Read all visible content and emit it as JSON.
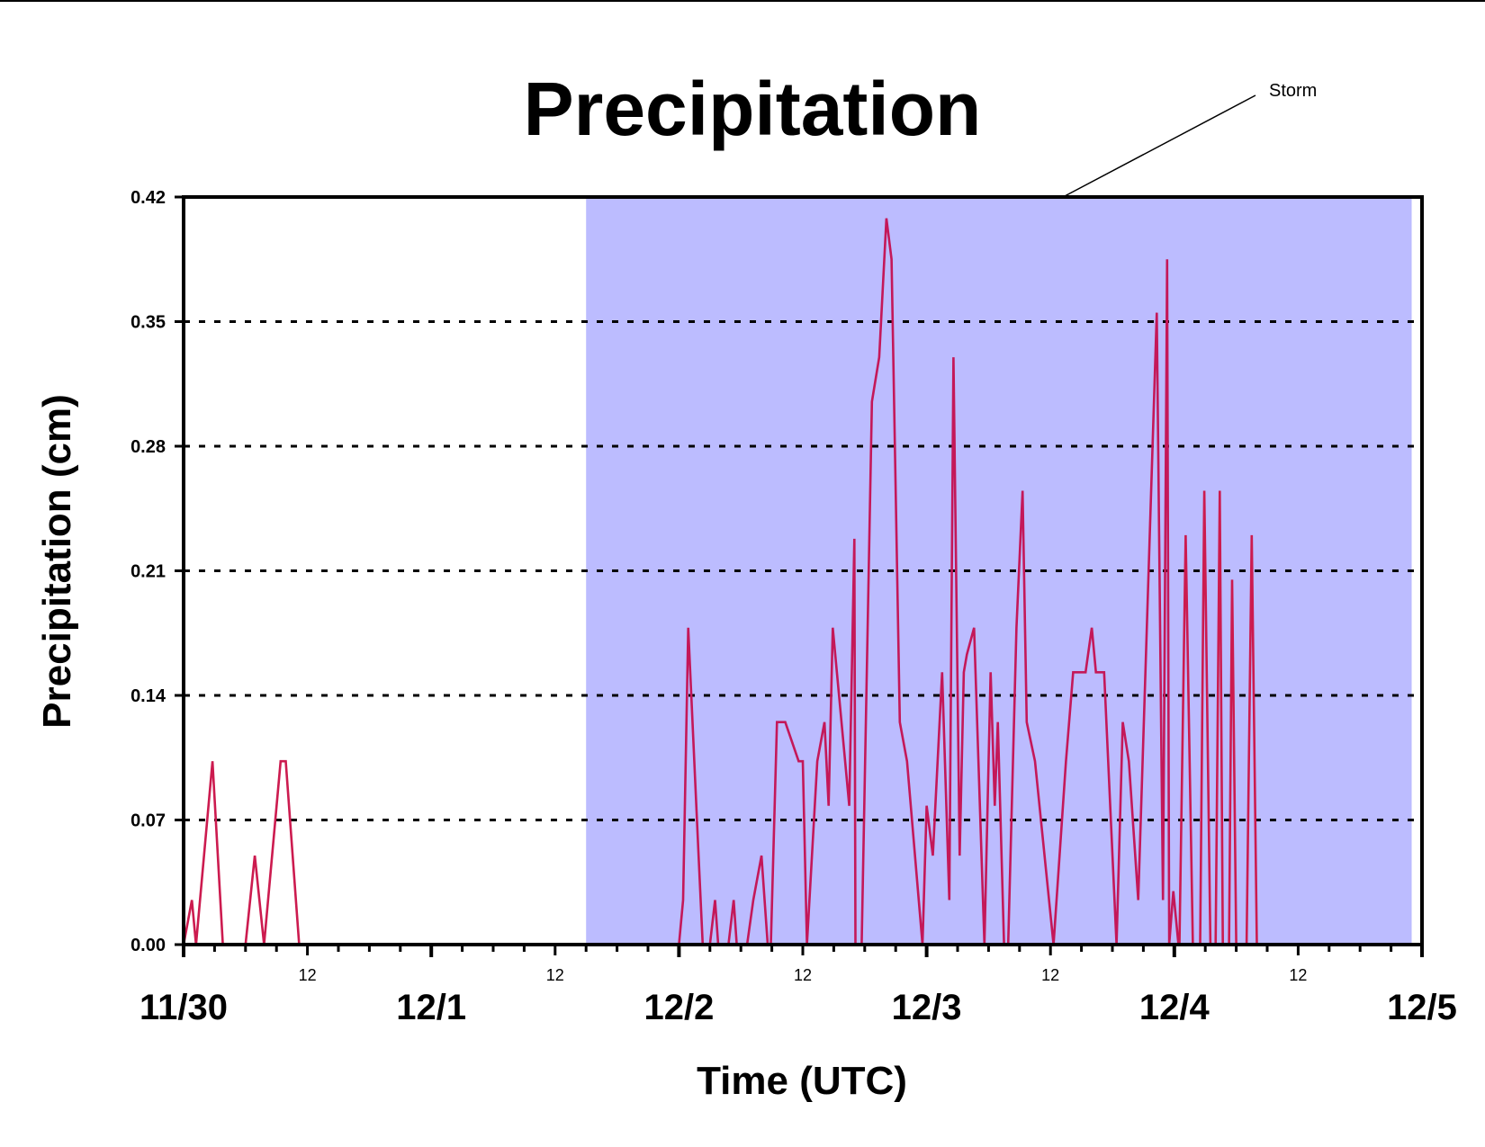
{
  "chart_data": {
    "type": "line",
    "title": "Precipitation",
    "xlabel": "Time (UTC)",
    "ylabel": "Precipitation (cm)",
    "ylim": [
      0,
      0.42
    ],
    "yticks": [
      "0.00",
      "0.07",
      "0.14",
      "0.21",
      "0.28",
      "0.35",
      "0.42"
    ],
    "xlim_hours": [
      0,
      120
    ],
    "xticks_major": [
      {
        "hour": 0,
        "label": "11/30"
      },
      {
        "hour": 24,
        "label": "12/1"
      },
      {
        "hour": 48,
        "label": "12/2"
      },
      {
        "hour": 72,
        "label": "12/3"
      },
      {
        "hour": 96,
        "label": "12/4"
      },
      {
        "hour": 120,
        "label": "12/5"
      }
    ],
    "xticks_minor_labeled": [
      {
        "hour": 12,
        "label": "12"
      },
      {
        "hour": 36,
        "label": "12"
      },
      {
        "hour": 60,
        "label": "12"
      },
      {
        "hour": 84,
        "label": "12"
      },
      {
        "hour": 108,
        "label": "12"
      }
    ],
    "grid": "horizontal dotted",
    "shaded_region": {
      "label": "Storm",
      "start_hour": 39,
      "end_hour": 119,
      "color": "#bcbcff"
    },
    "series": [
      {
        "color": "#cc1b4f",
        "x": [
          0,
          0.8,
          1.2,
          2.8,
          3.8,
          6,
          6.9,
          7.8,
          9.4,
          9.9,
          11.2,
          96,
          96.5,
          97.1,
          97.8,
          98,
          98.5,
          98.9,
          99.5,
          100,
          100.4,
          100.7,
          101.3,
          101.6,
          102,
          102.6,
          103,
          103.5,
          104,
          120
        ],
        "y": [
          0,
          0.025,
          0,
          0.103,
          0,
          0,
          0.05,
          0,
          0.103,
          0.103,
          0,
          0,
          0,
          0.23,
          0,
          0,
          0,
          0.255,
          0,
          0,
          0.255,
          0,
          0,
          0.205,
          0,
          0,
          0,
          0.23,
          0,
          0
        ]
      },
      {
        "color": "#c41859",
        "x": [
          39,
          48,
          48.4,
          48.9,
          49.9,
          50.3,
          51,
          51.5,
          51.8,
          52.4,
          52.8,
          53.3,
          53.6,
          54,
          54.6,
          55.2,
          56,
          56.6,
          56.9,
          57.5,
          58.3,
          59.6,
          60,
          60.4,
          61.4,
          62.1,
          62.5,
          62.9,
          64.5,
          65,
          65.1,
          65.7,
          66.7,
          67.4,
          68.1,
          68.6,
          69.4,
          70.1,
          71.6,
          72,
          72.6,
          73.5,
          74.2,
          74.6,
          75.2,
          75.6,
          75.9,
          76.6,
          77.6,
          78.2,
          78.6,
          78.9,
          79.5,
          79.9,
          80.7,
          81.3,
          81.7,
          82.5,
          84.3,
          85.5,
          86.2,
          87.4,
          88,
          88.4,
          89.2,
          90.4,
          91,
          91.6,
          92.5,
          94.3,
          94.9,
          95.3,
          95.5,
          95.9,
          96.4
        ],
        "y": [
          0,
          0,
          0.025,
          0.178,
          0.05,
          0,
          0,
          0.025,
          0,
          0,
          0,
          0.025,
          0,
          0,
          0,
          0.025,
          0.05,
          0,
          0,
          0.125,
          0.125,
          0.103,
          0.103,
          0,
          0.103,
          0.125,
          0.078,
          0.178,
          0.078,
          0.228,
          0,
          0,
          0.305,
          0.33,
          0.408,
          0.385,
          0.125,
          0.103,
          0,
          0.078,
          0.05,
          0.153,
          0.025,
          0.33,
          0.05,
          0.153,
          0.163,
          0.178,
          0,
          0.153,
          0.078,
          0.125,
          0,
          0,
          0.178,
          0.255,
          0.125,
          0.103,
          0,
          0.103,
          0.153,
          0.153,
          0.178,
          0.153,
          0.153,
          0,
          0.125,
          0.103,
          0.025,
          0.355,
          0.025,
          0.385,
          0,
          0.03,
          0
        ]
      }
    ],
    "annotations": [
      {
        "text": "Storm"
      }
    ]
  }
}
